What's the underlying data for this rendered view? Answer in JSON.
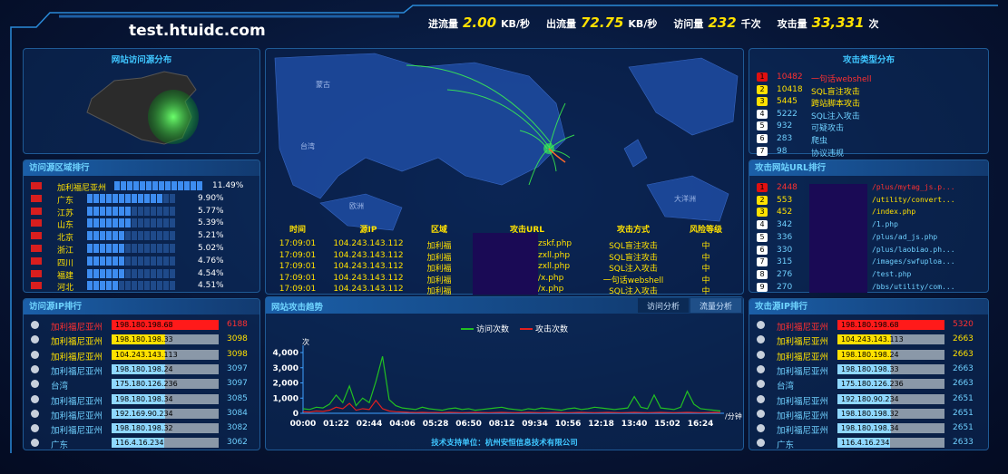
{
  "header": {
    "site": "test.htuidc.com",
    "stats": [
      {
        "label": "进流量",
        "value": "2.00",
        "unit": "KB/秒"
      },
      {
        "label": "出流量",
        "value": "72.75",
        "unit": "KB/秒"
      },
      {
        "label": "访问量",
        "value": "232",
        "unit": "千次"
      },
      {
        "label": "攻击量",
        "value": "33,331",
        "unit": "次"
      }
    ]
  },
  "source_map": {
    "title": "网站访问源分布"
  },
  "region_rank": {
    "title": "访问源区域排行",
    "rows": [
      {
        "name": "加利福尼亚州",
        "value": 11.49,
        "label": "11.49%"
      },
      {
        "name": "广东",
        "value": 9.9,
        "label": "9.90%"
      },
      {
        "name": "江苏",
        "value": 5.77,
        "label": "5.77%"
      },
      {
        "name": "山东",
        "value": 5.39,
        "label": "5.39%"
      },
      {
        "name": "北京",
        "value": 5.21,
        "label": "5.21%"
      },
      {
        "name": "浙江",
        "value": 5.02,
        "label": "5.02%"
      },
      {
        "name": "四川",
        "value": 4.76,
        "label": "4.76%"
      },
      {
        "name": "福建",
        "value": 4.54,
        "label": "4.54%"
      },
      {
        "name": "河北",
        "value": 4.51,
        "label": "4.51%"
      }
    ]
  },
  "visit_ip_rank": {
    "title": "访问源IP排行",
    "rows": [
      {
        "name": "加利福尼亚州",
        "ip": "198.180.198.68",
        "count": 6188
      },
      {
        "name": "加利福尼亚州",
        "ip": "198.180.198.33",
        "count": 3098
      },
      {
        "name": "加利福尼亚州",
        "ip": "104.243.143.113",
        "count": 3098
      },
      {
        "name": "加利福尼亚州",
        "ip": "198.180.198.24",
        "count": 3097
      },
      {
        "name": "台湾",
        "ip": "175.180.126.236",
        "count": 3097
      },
      {
        "name": "加利福尼亚州",
        "ip": "198.180.198.34",
        "count": 3085
      },
      {
        "name": "加利福尼亚州",
        "ip": "192.169.90.234",
        "count": 3084
      },
      {
        "name": "加利福尼亚州",
        "ip": "198.180.198.32",
        "count": 3082
      },
      {
        "name": "广东",
        "ip": "116.4.16.234",
        "count": 3062
      }
    ]
  },
  "map": {
    "labels": [
      "蒙古",
      "台湾",
      "欧洲",
      "大洋洲"
    ]
  },
  "attack_log": {
    "headers": [
      "时间",
      "源IP",
      "区域",
      "攻击URL",
      "攻击方式",
      "风险等级"
    ],
    "rows": [
      [
        "17:09:01",
        "104.243.143.112",
        "加利福",
        "zskf.php",
        "SQL盲注攻击",
        "中"
      ],
      [
        "17:09:01",
        "104.243.143.112",
        "加利福",
        "zxll.php",
        "SQL盲注攻击",
        "中"
      ],
      [
        "17:09:01",
        "104.243.143.112",
        "加利福",
        "zxll.php",
        "SQL注入攻击",
        "中"
      ],
      [
        "17:09:01",
        "104.243.143.112",
        "加利福",
        "/x.php",
        "一句话webshell",
        "中"
      ],
      [
        "17:09:01",
        "104.243.143.112",
        "加利福",
        "/x.php",
        "SQL注入攻击",
        "中"
      ]
    ]
  },
  "attack_types": {
    "title": "攻击类型分布",
    "rows": [
      {
        "rank": 1,
        "count": 10482,
        "name": "一句话webshell"
      },
      {
        "rank": 2,
        "count": 10418,
        "name": "SQL盲注攻击"
      },
      {
        "rank": 3,
        "count": 5445,
        "name": "跨站脚本攻击"
      },
      {
        "rank": 4,
        "count": 5222,
        "name": "SQL注入攻击"
      },
      {
        "rank": 5,
        "count": 932,
        "name": "可疑攻击"
      },
      {
        "rank": 6,
        "count": 283,
        "name": "爬虫"
      },
      {
        "rank": 7,
        "count": 98,
        "name": "协议违规"
      }
    ]
  },
  "url_rank": {
    "title": "攻击网站URL排行",
    "rows": [
      {
        "rank": 1,
        "count": 2448,
        "url": "/plus/mytag_js.p..."
      },
      {
        "rank": 2,
        "count": 553,
        "url": "/utility/convert..."
      },
      {
        "rank": 3,
        "count": 452,
        "url": "/index.php"
      },
      {
        "rank": 4,
        "count": 342,
        "url": "/1.php"
      },
      {
        "rank": 5,
        "count": 336,
        "url": "/plus/ad_js.php"
      },
      {
        "rank": 6,
        "count": 330,
        "url": "/plus/laobiao.ph..."
      },
      {
        "rank": 7,
        "count": 315,
        "url": "/images/swfuploa..."
      },
      {
        "rank": 8,
        "count": 276,
        "url": "/test.php"
      },
      {
        "rank": 9,
        "count": 270,
        "url": "/bbs/utility/com..."
      }
    ]
  },
  "attack_ip_rank": {
    "title": "攻击源IP排行",
    "rows": [
      {
        "name": "加利福尼亚州",
        "ip": "198.180.198.68",
        "count": 5320
      },
      {
        "name": "加利福尼亚州",
        "ip": "104.243.143.113",
        "count": 2663
      },
      {
        "name": "加利福尼亚州",
        "ip": "198.180.198.24",
        "count": 2663
      },
      {
        "name": "加利福尼亚州",
        "ip": "198.180.198.33",
        "count": 2663
      },
      {
        "name": "台湾",
        "ip": "175.180.126.236",
        "count": 2663
      },
      {
        "name": "加利福尼亚州",
        "ip": "192.180.90.234",
        "count": 2651
      },
      {
        "name": "加利福尼亚州",
        "ip": "198.180.198.32",
        "count": 2651
      },
      {
        "name": "加利福尼亚州",
        "ip": "198.180.198.34",
        "count": 2651
      },
      {
        "name": "广东",
        "ip": "116.4.16.234",
        "count": 2633
      }
    ]
  },
  "trend": {
    "type": "line",
    "title": "网站攻击趋势",
    "tabs": [
      "访问分析",
      "流量分析"
    ],
    "y_unit": "次",
    "x_unit": "/分钟",
    "ylim": [
      0,
      4000
    ],
    "yticks": [
      0,
      {
        "value": 1000,
        "label": "1,000"
      },
      {
        "value": 2000,
        "label": "2,000"
      },
      {
        "value": 3000,
        "label": "3,000"
      },
      {
        "value": 4000,
        "label": "4,000"
      }
    ],
    "categories": [
      "00:00",
      null,
      null,
      null,
      null,
      "01:22",
      null,
      null,
      null,
      null,
      "02:44",
      null,
      null,
      null,
      null,
      "04:06",
      null,
      null,
      null,
      null,
      "05:28",
      null,
      null,
      null,
      null,
      "06:50",
      null,
      null,
      null,
      null,
      "08:12",
      null,
      null,
      null,
      null,
      "09:34",
      null,
      null,
      null,
      null,
      "10:56",
      null,
      null,
      null,
      null,
      "12:18",
      null,
      null,
      null,
      null,
      "13:40",
      null,
      null,
      null,
      null,
      "15:02",
      null,
      null,
      null,
      null,
      "16:24",
      null,
      null,
      null
    ],
    "series": [
      {
        "name": "访问次数",
        "color": "#22c022",
        "values": [
          300,
          250,
          400,
          350,
          600,
          1200,
          700,
          1800,
          500,
          1000,
          700,
          2100,
          3750,
          900,
          500,
          350,
          300,
          250,
          400,
          300,
          250,
          200,
          300,
          350,
          250,
          300,
          200,
          250,
          300,
          350,
          400,
          300,
          250,
          200,
          300,
          250,
          350,
          300,
          250,
          200,
          300,
          350,
          250,
          300,
          400,
          350,
          300,
          250,
          300,
          350,
          1100,
          400,
          300,
          1200,
          350,
          300,
          250,
          400,
          1450,
          600,
          300,
          250,
          200,
          150
        ]
      },
      {
        "name": "攻击次数",
        "color": "#e02020",
        "values": [
          100,
          80,
          150,
          120,
          200,
          400,
          300,
          650,
          200,
          300,
          250,
          850,
          300,
          150,
          100,
          80,
          60,
          50,
          60,
          50,
          50,
          40,
          60,
          50,
          40,
          50,
          60,
          50,
          40,
          50,
          60,
          50,
          40,
          50,
          60,
          50,
          40,
          50,
          60,
          50,
          40,
          50,
          60,
          50,
          40,
          50,
          60,
          50,
          40,
          50,
          60,
          50,
          40,
          50,
          60,
          50,
          40,
          50,
          60,
          50,
          40,
          50,
          60,
          50
        ]
      }
    ]
  },
  "footer": "技术支持单位：杭州安恒信息技术有限公司"
}
